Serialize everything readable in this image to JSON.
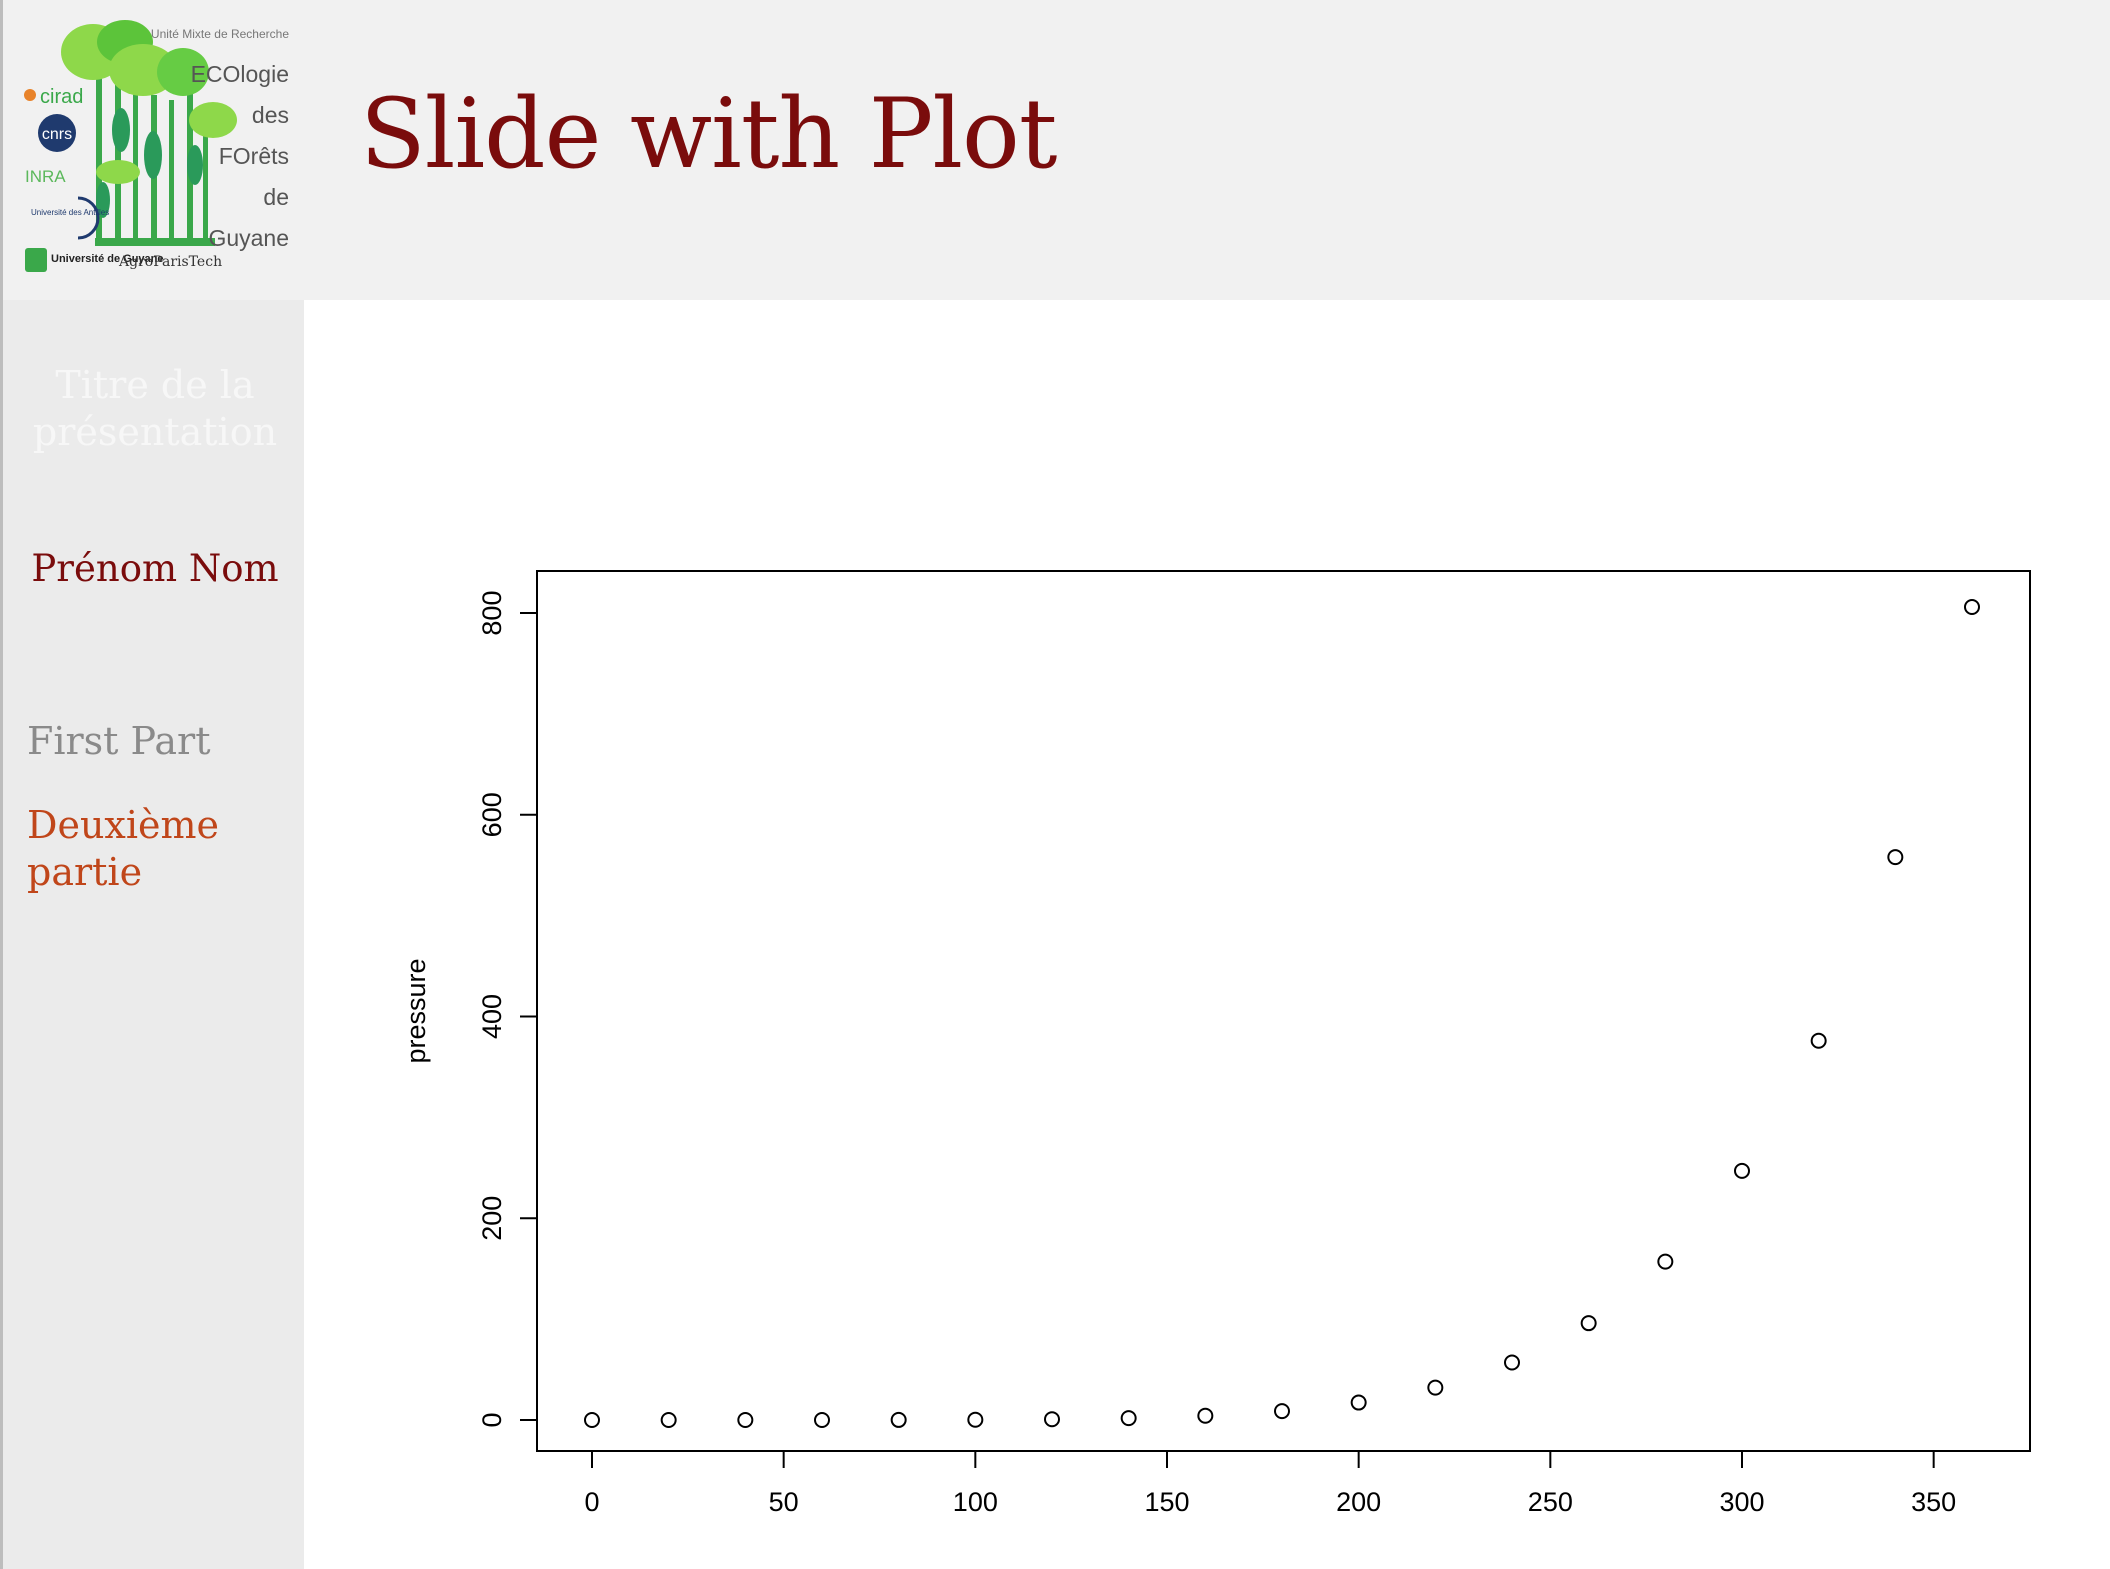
{
  "logo": {
    "unit_label": "Unité Mixte de Recherche",
    "name_lines": [
      "ECOlogie",
      "des",
      "FOrêts",
      "de",
      "Guyane"
    ],
    "partners": [
      "cirad",
      "cnrs",
      "INRA",
      "Université des Antilles",
      "Université de Guyane",
      "AgroParisTech"
    ]
  },
  "slide": {
    "title": "Slide with Plot"
  },
  "sidebar": {
    "presentation_title": "Titre de la présentation",
    "author": "Prénom Nom",
    "nav": [
      {
        "label": "First Part",
        "color": "#8a8a8a"
      },
      {
        "label": "Deuxième partie",
        "color": "#c0461a"
      }
    ]
  },
  "colors": {
    "title": "#7a0c0c",
    "accent": "#c0461a",
    "logo_green": "#3aa84a"
  },
  "chart_data": {
    "type": "scatter",
    "xlabel": "",
    "ylabel": "pressure",
    "xlim": [
      0,
      360
    ],
    "ylim": [
      0,
      806
    ],
    "xticks": [
      0,
      50,
      100,
      150,
      200,
      250,
      300,
      350
    ],
    "yticks": [
      0,
      200,
      400,
      600,
      800
    ],
    "grid": false,
    "points": [
      {
        "x": 0,
        "y": 0.0002
      },
      {
        "x": 20,
        "y": 0.0012
      },
      {
        "x": 40,
        "y": 0.006
      },
      {
        "x": 60,
        "y": 0.03
      },
      {
        "x": 80,
        "y": 0.09
      },
      {
        "x": 100,
        "y": 0.27
      },
      {
        "x": 120,
        "y": 0.75
      },
      {
        "x": 140,
        "y": 1.85
      },
      {
        "x": 160,
        "y": 4.2
      },
      {
        "x": 180,
        "y": 8.8
      },
      {
        "x": 200,
        "y": 17.3
      },
      {
        "x": 220,
        "y": 32.1
      },
      {
        "x": 240,
        "y": 57
      },
      {
        "x": 260,
        "y": 96
      },
      {
        "x": 280,
        "y": 157
      },
      {
        "x": 300,
        "y": 247
      },
      {
        "x": 320,
        "y": 376
      },
      {
        "x": 340,
        "y": 558
      },
      {
        "x": 360,
        "y": 806
      }
    ]
  }
}
